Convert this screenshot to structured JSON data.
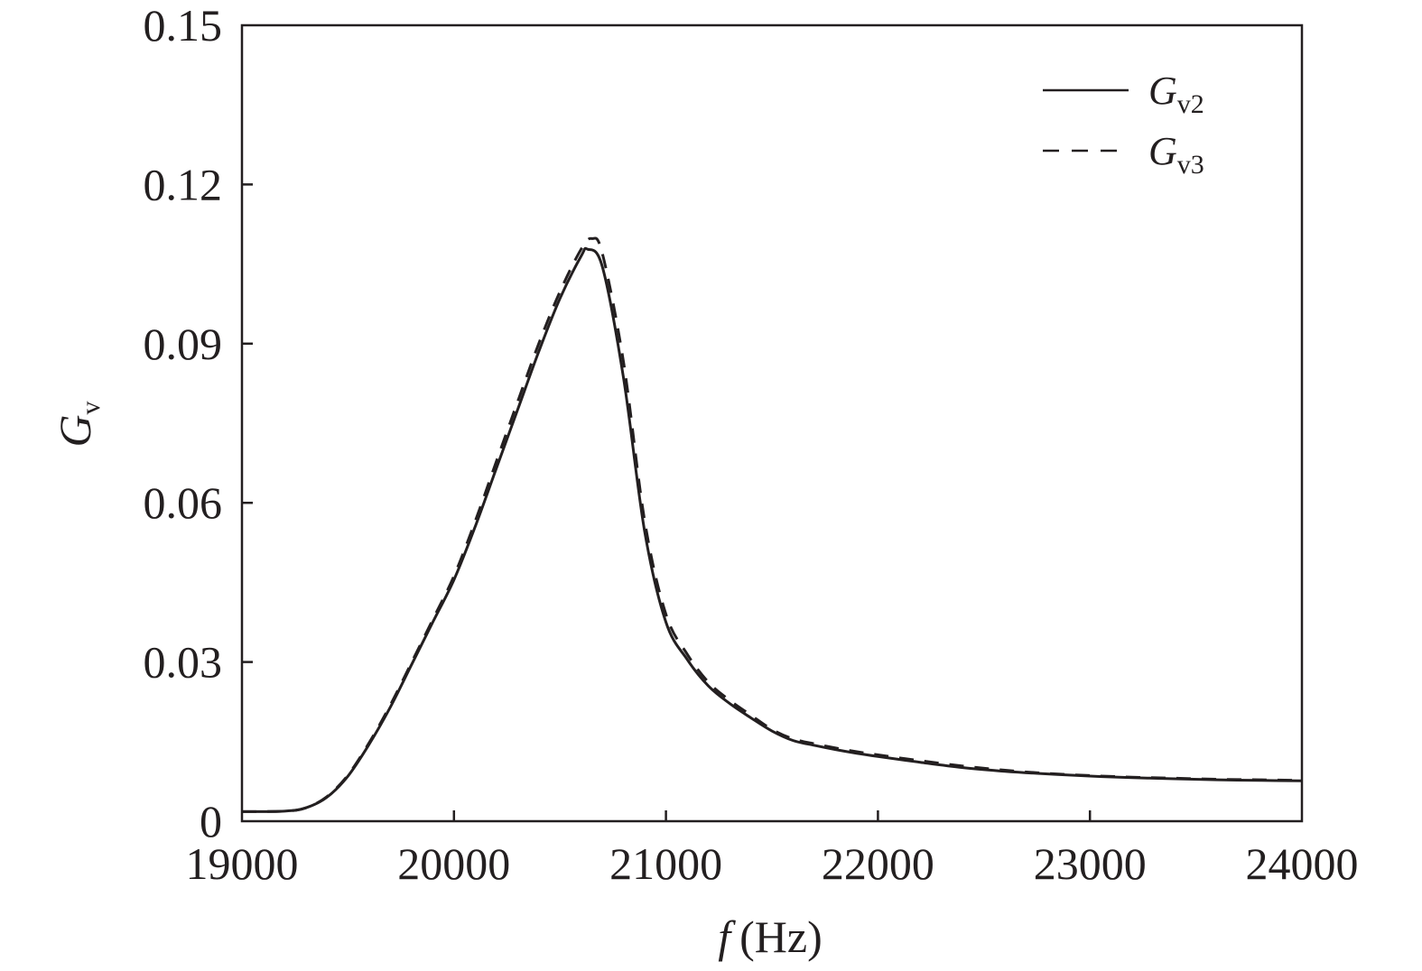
{
  "chart_data": {
    "type": "line",
    "title": "",
    "xlabel": {
      "var": "f",
      "unit": "(Hz)"
    },
    "ylabel": {
      "var": "G",
      "sub": "v"
    },
    "xlim": [
      19000,
      24000
    ],
    "ylim": [
      0,
      0.15
    ],
    "xticks": [
      19000,
      20000,
      21000,
      22000,
      23000,
      24000
    ],
    "xtick_labels": [
      "19000",
      "20000",
      "21000",
      "22000",
      "23000",
      "24000"
    ],
    "yticks": [
      0,
      0.03,
      0.06,
      0.09,
      0.12,
      0.15
    ],
    "ytick_labels": [
      "0",
      "0.03",
      "0.06",
      "0.09",
      "0.12",
      "0.15"
    ],
    "grid": false,
    "legend_position": "top-right",
    "series": [
      {
        "name": "G_v2",
        "label_main": "G",
        "label_sub": "v2",
        "style": "solid",
        "color": "#231f20",
        "x": [
          19000,
          19200,
          19300,
          19400,
          19500,
          19600,
          19700,
          19800,
          19900,
          20000,
          20100,
          20200,
          20300,
          20400,
          20500,
          20600,
          20630,
          20700,
          20800,
          20900,
          21000,
          21100,
          21200,
          21300,
          21400,
          21500,
          21600,
          21700,
          21800,
          21900,
          22000,
          22200,
          22400,
          22600,
          22800,
          23000,
          23200,
          23400,
          23600,
          23800,
          24000
        ],
        "y": [
          0.0018,
          0.0019,
          0.0025,
          0.0045,
          0.0085,
          0.0145,
          0.0215,
          0.0295,
          0.0375,
          0.0455,
          0.0555,
          0.0665,
          0.0775,
          0.0885,
          0.0985,
          0.1065,
          0.1078,
          0.1045,
          0.0835,
          0.0545,
          0.0375,
          0.0305,
          0.0255,
          0.0222,
          0.0195,
          0.017,
          0.0152,
          0.0143,
          0.0135,
          0.0128,
          0.0122,
          0.0111,
          0.0101,
          0.0094,
          0.0089,
          0.0085,
          0.0082,
          0.008,
          0.0078,
          0.0077,
          0.0076
        ]
      },
      {
        "name": "G_v3",
        "label_main": "G",
        "label_sub": "v3",
        "style": "dashed",
        "color": "#231f20",
        "x": [
          19000,
          19200,
          19300,
          19400,
          19500,
          19600,
          19700,
          19800,
          19900,
          20000,
          20100,
          20200,
          20300,
          20400,
          20500,
          20600,
          20650,
          20700,
          20800,
          20900,
          21000,
          21100,
          21200,
          21300,
          21400,
          21500,
          21600,
          21700,
          21800,
          21900,
          22000,
          22200,
          22400,
          22600,
          22800,
          23000,
          23200,
          23400,
          23600,
          23800,
          24000
        ],
        "y": [
          0.0018,
          0.0019,
          0.0025,
          0.0046,
          0.0087,
          0.0148,
          0.0219,
          0.0299,
          0.038,
          0.0462,
          0.0565,
          0.0678,
          0.079,
          0.09,
          0.0998,
          0.1078,
          0.1098,
          0.107,
          0.0865,
          0.0565,
          0.039,
          0.0315,
          0.0262,
          0.0228,
          0.02,
          0.0173,
          0.0155,
          0.0146,
          0.0138,
          0.0131,
          0.0125,
          0.0114,
          0.0104,
          0.0096,
          0.009,
          0.0086,
          0.0083,
          0.0081,
          0.0079,
          0.0078,
          0.0077
        ]
      }
    ]
  }
}
